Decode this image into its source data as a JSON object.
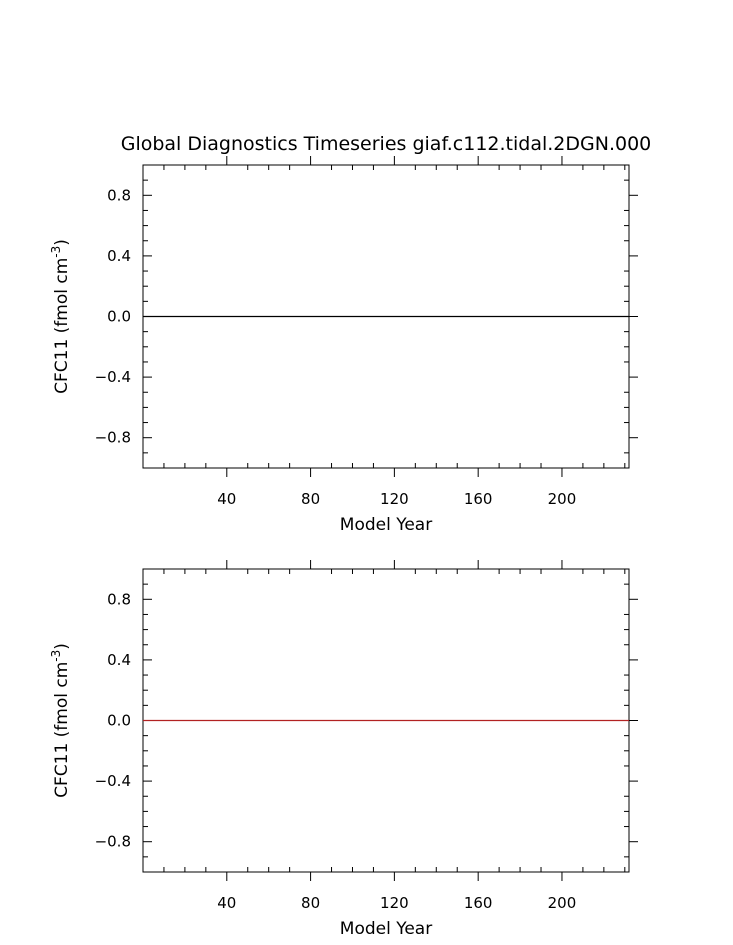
{
  "title": "Global Diagnostics Timeseries giaf.c112.tidal.2DGN.000",
  "chart_data": [
    {
      "type": "line",
      "xlabel": "Model Year",
      "ylabel": "CFC11  (fmol cm",
      "ylabel_sup": "-3",
      "ylabel_close": ")",
      "xlim": [
        0,
        232
      ],
      "ylim": [
        -1.0,
        1.0
      ],
      "x_ticks": [
        40,
        80,
        120,
        160,
        200
      ],
      "x_tick_labels": [
        "40",
        "80",
        "120",
        "160",
        "200"
      ],
      "x_minor_step": 10,
      "y_ticks": [
        0.8,
        0.4,
        0.0,
        -0.4,
        -0.8
      ],
      "y_tick_labels": [
        "0.8",
        "0.4",
        "0.0",
        "-0.4",
        "-0.8"
      ],
      "y_minor_step": 0.1,
      "grid": false,
      "series": [
        {
          "x": [
            0,
            232
          ],
          "values": [
            0.0,
            0.0
          ],
          "color": "#000000"
        }
      ]
    },
    {
      "type": "line",
      "xlabel": "Model Year",
      "ylabel": "CFC11  (fmol cm",
      "ylabel_sup": "-3",
      "ylabel_close": ")",
      "xlim": [
        0,
        232
      ],
      "ylim": [
        -1.0,
        1.0
      ],
      "x_ticks": [
        40,
        80,
        120,
        160,
        200
      ],
      "x_tick_labels": [
        "40",
        "80",
        "120",
        "160",
        "200"
      ],
      "x_minor_step": 10,
      "y_ticks": [
        0.8,
        0.4,
        0.0,
        -0.4,
        -0.8
      ],
      "y_tick_labels": [
        "0.8",
        "0.4",
        "0.0",
        "-0.4",
        "-0.8"
      ],
      "y_minor_step": 0.1,
      "grid": false,
      "series": [
        {
          "x": [
            0,
            232
          ],
          "values": [
            0.0,
            0.0
          ],
          "color": "#b22222"
        }
      ]
    }
  ]
}
